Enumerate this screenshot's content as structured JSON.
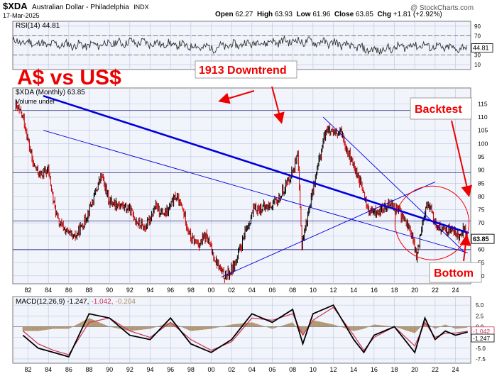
{
  "header": {
    "symbol": "$XDA",
    "name": "Australian Dollar - Philadelphia",
    "exchange": "INDX",
    "date": "17-Mar-2025",
    "open_label": "Open",
    "open": "62.27",
    "high_label": "High",
    "high": "63.93",
    "low_label": "Low",
    "low": "61.96",
    "close_label": "Close",
    "close": "63.85",
    "chg_label": "Chg",
    "chg": "+1.81 (+2.92%)",
    "watermark": "@ StockCharts.com"
  },
  "colors": {
    "price_up": "#000000",
    "price_down": "#cc0000",
    "trend": "#0000dd",
    "annotation": "#ee0000",
    "grid": "#b8c4e0",
    "pane_bg": "#f2f4fb"
  },
  "chart_data": [
    {
      "type": "line",
      "name": "rsi_panel",
      "legend": "RSI(14) 44.81",
      "last_value": "44.81",
      "ylim": [
        0,
        100
      ],
      "yticks": [
        "90",
        "70",
        "50",
        "30",
        "10"
      ],
      "overbought": 70,
      "oversold": 30,
      "series": [
        {
          "x": [
            1980.5,
            1984,
            1988,
            1992,
            1996,
            2000,
            2004,
            2008,
            2012,
            2016,
            2020,
            2024,
            2025.2
          ],
          "values": [
            58,
            52,
            50,
            57,
            52,
            45,
            55,
            59,
            55,
            39,
            51,
            43,
            45
          ]
        }
      ]
    },
    {
      "type": "line",
      "name": "price_panel",
      "legend": "$XDA (Monthly) 63.85",
      "volume_label": "Volume undef",
      "title": "A$ vs US$",
      "xlim": [
        1980.5,
        2025.5
      ],
      "ylim": [
        47,
        121
      ],
      "xticks": [
        "82",
        "84",
        "86",
        "88",
        "90",
        "92",
        "94",
        "96",
        "98",
        "00",
        "02",
        "04",
        "06",
        "08",
        "10",
        "12",
        "14",
        "16",
        "18",
        "20",
        "22",
        "24"
      ],
      "yticks": [
        "115",
        "110",
        "105",
        "100",
        "95",
        "90",
        "85",
        "80",
        "75",
        "70",
        "65",
        "60",
        "55",
        "50"
      ],
      "last_value": "63.85",
      "series": [
        {
          "name": "$XDA",
          "x": [
            1980.8,
            1981.5,
            1982.5,
            1983.2,
            1984.0,
            1984.5,
            1985.0,
            1985.5,
            1986.5,
            1987.5,
            1988.5,
            1989.2,
            1990.0,
            1991.0,
            1992.0,
            1992.8,
            1993.5,
            1994.5,
            1995.5,
            1996.5,
            1997.2,
            1998.0,
            1998.8,
            1999.5,
            2000.3,
            2001.2,
            2001.8,
            2002.5,
            2003.5,
            2004.2,
            2005.5,
            2006.5,
            2007.8,
            2008.5,
            2008.9,
            2009.5,
            2010.5,
            2011.3,
            2012.0,
            2012.8,
            2013.8,
            2014.5,
            2015.5,
            2016.5,
            2017.5,
            2018.5,
            2019.5,
            2020.2,
            2020.8,
            2021.3,
            2022.0,
            2022.8,
            2023.5,
            2024.3,
            2024.8,
            2025.2
          ],
          "values": [
            114,
            110,
            92,
            88,
            90,
            78,
            70,
            68,
            64,
            70,
            80,
            88,
            78,
            77,
            75,
            70,
            68,
            76,
            73,
            80,
            75,
            64,
            62,
            65,
            57,
            50,
            51,
            56,
            68,
            75,
            76,
            78,
            88,
            95,
            62,
            73,
            92,
            106,
            103,
            104,
            93,
            87,
            74,
            74,
            78,
            74,
            68,
            57,
            72,
            78,
            70,
            67,
            68,
            65,
            68,
            63.85
          ]
        }
      ],
      "trendlines": [
        {
          "name": "1913 downtrend",
          "from": [
            1983.5,
            118
          ],
          "to": [
            2025.3,
            66.2
          ]
        },
        {
          "name": "lower channel line",
          "from": [
            1983.5,
            105
          ],
          "to": [
            2025.2,
            58.7
          ]
        },
        {
          "name": "rising support line",
          "from": [
            2001.0,
            49.5
          ],
          "to": [
            2022.0,
            85.5
          ]
        },
        {
          "name": "2011 falling line",
          "from": [
            2011.0,
            110
          ],
          "to": [
            2025.0,
            58.5
          ]
        }
      ],
      "horizontal_lines": [
        112.5,
        89,
        70.7,
        59.9
      ],
      "annotations": [
        {
          "text": "1913 Downtrend"
        },
        {
          "text": "Backtest"
        },
        {
          "text": "Bottom"
        }
      ]
    },
    {
      "type": "line",
      "name": "macd_panel",
      "legend_main": "MACD(12,26,9) -1.247,",
      "legend_signal": "-1.042,",
      "legend_hist": "-0.204",
      "last_macd": "-1.247",
      "last_signal": "-1.042",
      "ylim": [
        -8.5,
        7
      ],
      "yticks": [
        "5.0",
        "2.5",
        "0.0",
        "-2.5",
        "-5.0",
        "-7.5"
      ],
      "series": [
        {
          "name": "MACD",
          "x": [
            1981.5,
            1983,
            1984.5,
            1986,
            1988,
            1990,
            1992,
            1994,
            1996,
            1998,
            2000,
            2002,
            2004,
            2006,
            2008,
            2009,
            2010,
            2012,
            2014,
            2015,
            2016,
            2018,
            2020,
            2021,
            2022,
            2023,
            2024,
            2025.2
          ],
          "values": [
            -2,
            -5,
            -6,
            -7,
            3,
            2,
            -2,
            -3,
            2,
            -4,
            -6,
            -3,
            3,
            1,
            4,
            -4,
            3,
            5,
            -3,
            -6,
            -2,
            0,
            -6,
            2,
            -3,
            -1,
            -2,
            -1.25
          ]
        },
        {
          "name": "Signal",
          "x": [
            1981.5,
            1983,
            1984.5,
            1986,
            1988,
            1990,
            1992,
            1994,
            1996,
            1998,
            2000,
            2002,
            2004,
            2006,
            2008,
            2009,
            2010,
            2012,
            2014,
            2015,
            2016,
            2018,
            2020,
            2021,
            2022,
            2023,
            2024,
            2025.2
          ],
          "values": [
            -1,
            -4,
            -5.5,
            -6.5,
            1,
            2,
            -1,
            -2.5,
            1,
            -3,
            -5.5,
            -3.5,
            2,
            1.5,
            3,
            -2,
            1.5,
            4.5,
            -2,
            -5.5,
            -2.5,
            0,
            -4.5,
            1,
            -2.5,
            -1.5,
            -1.5,
            -1.04
          ]
        }
      ],
      "xticks": [
        "82",
        "84",
        "86",
        "88",
        "90",
        "92",
        "94",
        "96",
        "98",
        "00",
        "02",
        "04",
        "06",
        "08",
        "10",
        "12",
        "14",
        "16",
        "18",
        "20",
        "22",
        "24"
      ]
    }
  ]
}
